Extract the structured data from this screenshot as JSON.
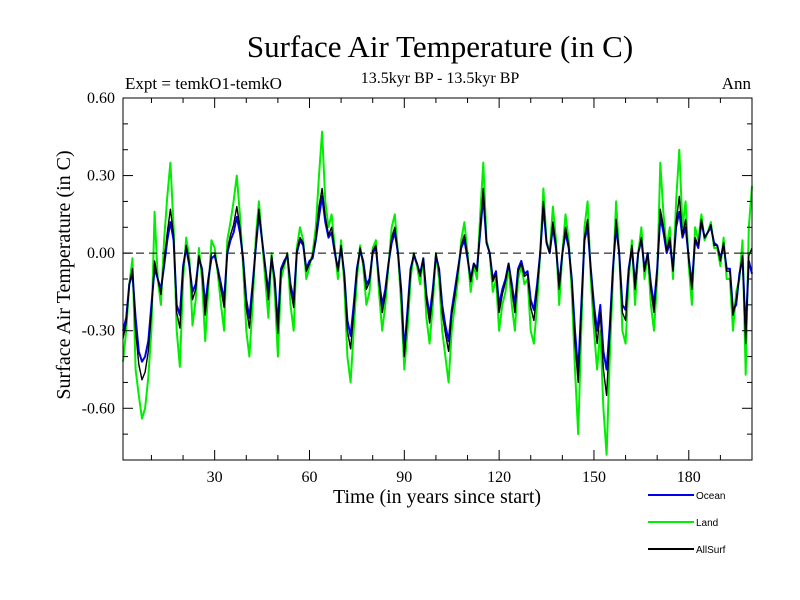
{
  "chart_data": {
    "type": "line",
    "title": "Surface Air Temperature (in C)",
    "subtitle": "13.5kyr BP - 13.5kyr BP",
    "left_annotation": "Expt = temkO1-temkO",
    "right_annotation": "Ann",
    "xlabel": "Time (in years since start)",
    "ylabel": "Surface Air Temperature (in C)",
    "xlim": [
      1,
      200
    ],
    "ylim": [
      -0.8,
      0.6
    ],
    "x_ticks": [
      30,
      60,
      90,
      120,
      150,
      180
    ],
    "x_tick_labels": [
      "30",
      "60",
      "90",
      "120",
      "150",
      "180"
    ],
    "y_ticks": [
      0.6,
      0.3,
      0.0,
      -0.3,
      -0.6
    ],
    "y_tick_labels": [
      "0.60",
      "0.30",
      "0.00",
      "-0.30",
      "-0.60"
    ],
    "zero_line": true,
    "legend_position": "bottom-right",
    "x_start": 1,
    "series": [
      {
        "name": "Land",
        "color": "#00ee00",
        "values": [
          -0.42,
          -0.3,
          -0.12,
          -0.02,
          -0.45,
          -0.55,
          -0.64,
          -0.6,
          -0.48,
          -0.3,
          0.16,
          -0.1,
          -0.2,
          0.05,
          0.22,
          0.35,
          0.1,
          -0.3,
          -0.44,
          -0.1,
          0.06,
          -0.02,
          -0.28,
          -0.18,
          0.02,
          -0.1,
          -0.34,
          -0.14,
          0.05,
          0.02,
          -0.08,
          -0.2,
          -0.3,
          0.05,
          0.12,
          0.2,
          0.3,
          0.15,
          -0.05,
          -0.3,
          -0.4,
          -0.2,
          0.06,
          0.2,
          0.05,
          -0.1,
          -0.25,
          0.0,
          -0.15,
          -0.4,
          -0.1,
          -0.05,
          0.0,
          -0.2,
          -0.3,
          0.02,
          0.1,
          0.05,
          -0.1,
          -0.05,
          0.0,
          0.1,
          0.3,
          0.47,
          0.2,
          0.1,
          0.15,
          0.02,
          -0.1,
          0.05,
          -0.12,
          -0.4,
          -0.5,
          -0.3,
          -0.1,
          0.03,
          -0.05,
          -0.2,
          -0.15,
          0.02,
          0.05,
          -0.15,
          -0.3,
          -0.2,
          -0.05,
          0.1,
          0.15,
          0.0,
          -0.2,
          -0.45,
          -0.3,
          -0.1,
          0.0,
          -0.05,
          -0.12,
          -0.02,
          -0.25,
          -0.35,
          -0.2,
          0.0,
          -0.1,
          -0.3,
          -0.4,
          -0.5,
          -0.3,
          -0.2,
          -0.1,
          0.05,
          0.12,
          0.0,
          -0.15,
          -0.05,
          -0.1,
          0.15,
          0.35,
          0.05,
          0.0,
          -0.15,
          -0.1,
          -0.3,
          -0.2,
          -0.15,
          -0.05,
          -0.2,
          -0.3,
          -0.1,
          -0.05,
          -0.12,
          -0.1,
          -0.3,
          -0.35,
          -0.2,
          0.0,
          0.25,
          0.05,
          0.0,
          0.18,
          0.05,
          -0.2,
          0.0,
          0.15,
          0.05,
          -0.15,
          -0.45,
          -0.7,
          -0.3,
          0.1,
          0.2,
          -0.1,
          -0.3,
          -0.45,
          -0.3,
          -0.6,
          -0.78,
          -0.4,
          -0.1,
          0.2,
          0.0,
          -0.3,
          -0.35,
          -0.1,
          0.05,
          -0.2,
          0.0,
          0.1,
          -0.1,
          0.0,
          -0.2,
          -0.3,
          -0.1,
          0.35,
          0.15,
          0.02,
          0.1,
          -0.1,
          0.2,
          0.4,
          0.1,
          0.2,
          -0.05,
          -0.2,
          0.1,
          0.05,
          0.15,
          0.05,
          0.08,
          0.12,
          0.02,
          0.02,
          -0.05,
          0.06,
          -0.1,
          -0.1,
          -0.3,
          -0.15,
          -0.1,
          0.05,
          -0.47,
          0.1,
          0.26
        ]
      },
      {
        "name": "Ocean",
        "color": "#0000ee",
        "values": [
          -0.3,
          -0.25,
          -0.12,
          -0.08,
          -0.25,
          -0.38,
          -0.42,
          -0.4,
          -0.34,
          -0.2,
          -0.06,
          -0.1,
          -0.14,
          -0.05,
          0.05,
          0.12,
          0.05,
          -0.2,
          -0.24,
          -0.05,
          0.02,
          -0.05,
          -0.15,
          -0.12,
          -0.02,
          -0.06,
          -0.2,
          -0.1,
          -0.02,
          -0.01,
          -0.06,
          -0.12,
          -0.18,
          0.0,
          0.05,
          0.08,
          0.14,
          0.08,
          -0.02,
          -0.18,
          -0.25,
          -0.12,
          0.02,
          0.15,
          0.05,
          -0.05,
          -0.15,
          -0.02,
          -0.1,
          -0.28,
          -0.06,
          -0.03,
          -0.01,
          -0.12,
          -0.18,
          0.0,
          0.05,
          0.03,
          -0.06,
          -0.03,
          -0.02,
          0.05,
          0.14,
          0.22,
          0.12,
          0.06,
          0.08,
          0.0,
          -0.06,
          0.02,
          -0.08,
          -0.26,
          -0.32,
          -0.2,
          -0.06,
          0.01,
          -0.03,
          -0.12,
          -0.1,
          0.0,
          0.02,
          -0.1,
          -0.2,
          -0.14,
          -0.04,
          0.04,
          0.08,
          0.0,
          -0.14,
          -0.38,
          -0.22,
          -0.06,
          -0.01,
          -0.04,
          -0.08,
          -0.02,
          -0.16,
          -0.24,
          -0.14,
          -0.01,
          -0.06,
          -0.2,
          -0.28,
          -0.34,
          -0.22,
          -0.14,
          -0.06,
          0.02,
          0.05,
          -0.02,
          -0.1,
          -0.04,
          -0.06,
          0.08,
          0.22,
          0.04,
          0.0,
          -0.1,
          -0.07,
          -0.2,
          -0.14,
          -0.1,
          -0.04,
          -0.12,
          -0.2,
          -0.06,
          -0.03,
          -0.08,
          -0.07,
          -0.18,
          -0.22,
          -0.12,
          0.0,
          0.18,
          0.04,
          0.0,
          0.1,
          0.02,
          -0.12,
          0.0,
          0.08,
          0.02,
          -0.1,
          -0.3,
          -0.46,
          -0.2,
          0.05,
          0.1,
          -0.06,
          -0.2,
          -0.3,
          -0.2,
          -0.38,
          -0.45,
          -0.28,
          -0.06,
          0.1,
          0.0,
          -0.2,
          -0.22,
          -0.06,
          0.02,
          -0.12,
          0.0,
          0.05,
          -0.06,
          0.0,
          -0.12,
          -0.2,
          -0.06,
          0.14,
          0.08,
          0.0,
          0.04,
          -0.06,
          0.1,
          0.16,
          0.06,
          0.1,
          -0.02,
          -0.12,
          0.05,
          0.02,
          0.12,
          0.06,
          0.08,
          0.1,
          0.04,
          0.03,
          -0.02,
          0.03,
          -0.06,
          -0.06,
          -0.22,
          -0.2,
          -0.08,
          -0.02,
          -0.3,
          -0.03,
          -0.08
        ]
      },
      {
        "name": "AllSurf",
        "color": "#000000",
        "values": [
          -0.33,
          -0.27,
          -0.12,
          -0.06,
          -0.3,
          -0.43,
          -0.49,
          -0.46,
          -0.38,
          -0.23,
          -0.03,
          -0.1,
          -0.16,
          -0.03,
          0.08,
          0.17,
          0.07,
          -0.23,
          -0.29,
          -0.06,
          0.03,
          -0.04,
          -0.18,
          -0.14,
          -0.01,
          -0.07,
          -0.24,
          -0.11,
          0.0,
          0.0,
          -0.07,
          -0.14,
          -0.21,
          0.01,
          0.07,
          0.11,
          0.18,
          0.1,
          -0.03,
          -0.21,
          -0.29,
          -0.14,
          0.03,
          0.17,
          0.05,
          -0.06,
          -0.18,
          -0.01,
          -0.11,
          -0.31,
          -0.07,
          -0.04,
          0.0,
          -0.14,
          -0.21,
          0.01,
          0.06,
          0.04,
          -0.07,
          -0.04,
          -0.01,
          0.06,
          0.18,
          0.25,
          0.14,
          0.07,
          0.1,
          0.01,
          -0.07,
          0.03,
          -0.09,
          -0.3,
          -0.37,
          -0.23,
          -0.07,
          0.02,
          -0.04,
          -0.14,
          -0.11,
          0.01,
          0.03,
          -0.11,
          -0.23,
          -0.16,
          -0.04,
          0.06,
          0.1,
          0.0,
          -0.16,
          -0.4,
          -0.24,
          -0.07,
          0.0,
          -0.04,
          -0.09,
          -0.02,
          -0.18,
          -0.27,
          -0.16,
          0.0,
          -0.07,
          -0.23,
          -0.31,
          -0.38,
          -0.24,
          -0.16,
          -0.07,
          0.03,
          0.07,
          -0.01,
          -0.11,
          -0.04,
          -0.07,
          0.1,
          0.25,
          0.04,
          0.0,
          -0.11,
          -0.08,
          -0.23,
          -0.16,
          -0.11,
          -0.04,
          -0.14,
          -0.23,
          -0.07,
          -0.04,
          -0.09,
          -0.08,
          -0.21,
          -0.26,
          -0.14,
          0.0,
          0.2,
          0.04,
          0.0,
          0.12,
          0.03,
          -0.14,
          0.0,
          0.1,
          0.03,
          -0.11,
          -0.35,
          -0.5,
          -0.23,
          0.06,
          0.13,
          -0.07,
          -0.23,
          -0.35,
          -0.23,
          -0.45,
          -0.55,
          -0.31,
          -0.07,
          0.13,
          0.0,
          -0.23,
          -0.26,
          -0.07,
          0.03,
          -0.14,
          0.0,
          0.06,
          -0.07,
          0.0,
          -0.14,
          -0.23,
          -0.07,
          0.17,
          0.1,
          0.01,
          0.06,
          -0.07,
          0.12,
          0.22,
          0.07,
          0.13,
          -0.03,
          -0.14,
          0.06,
          0.03,
          0.13,
          0.06,
          0.08,
          0.11,
          0.03,
          0.03,
          -0.03,
          0.04,
          -0.07,
          -0.07,
          -0.24,
          -0.18,
          -0.09,
          -0.01,
          -0.35,
          -0.01,
          0.02
        ]
      }
    ]
  }
}
